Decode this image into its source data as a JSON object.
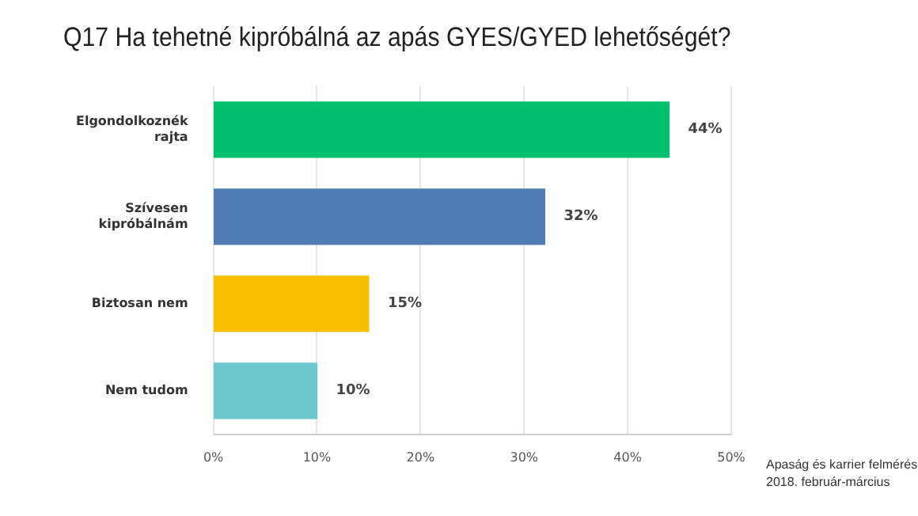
{
  "chart_data": {
    "type": "bar",
    "orientation": "horizontal",
    "title": "Q17 Ha tehetné kipróbálná az apás GYES/GYED lehetőségét?",
    "categories": [
      "Elgondolkoznék rajta",
      "Szívesen kipróbálnám",
      "Biztosan nem",
      "Nem tudom"
    ],
    "values": [
      44,
      32,
      15,
      10
    ],
    "colors": [
      "#00bf6f",
      "#507cb6",
      "#f9be00",
      "#6bc8cd"
    ],
    "value_labels": [
      "44%",
      "32%",
      "15%",
      "10%"
    ],
    "xlim": [
      0,
      50
    ],
    "xticks": [
      {
        "value": 0,
        "label": "0%"
      },
      {
        "value": 10,
        "label": "10%"
      },
      {
        "value": 20,
        "label": "20%"
      },
      {
        "value": 30,
        "label": "30%"
      },
      {
        "value": 40,
        "label": "40%"
      },
      {
        "value": 50,
        "label": "50%"
      }
    ],
    "grid": "x",
    "legend": false,
    "annotations": [
      "Apaság és karrier felmérés\n2018. február-március"
    ]
  }
}
